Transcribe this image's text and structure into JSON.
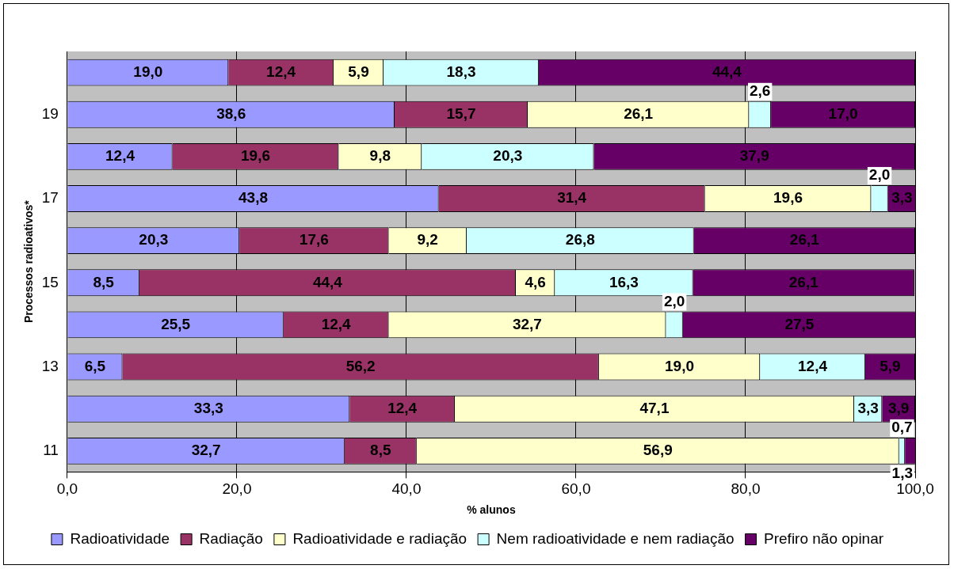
{
  "chart_data": {
    "type": "bar",
    "orientation": "horizontal",
    "stacked": true,
    "xlabel": "% alunos",
    "ylabel": "Processos radioativos*",
    "categories": [
      null,
      "19",
      null,
      "17",
      null,
      "15",
      null,
      "13",
      null,
      "11"
    ],
    "series": [
      {
        "name": "Radioatividade",
        "color": "#9999ff",
        "values": [
          19.0,
          38.6,
          12.4,
          43.8,
          20.3,
          8.5,
          25.5,
          6.5,
          33.3,
          32.7
        ],
        "value_labels": [
          "19,0",
          "38,6",
          "12,4",
          "43,8",
          "20,3",
          "8,5",
          "25,5",
          "6,5",
          "33,3",
          "32,7"
        ]
      },
      {
        "name": "Radiação",
        "color": "#993366",
        "values": [
          12.4,
          15.7,
          19.6,
          31.4,
          17.6,
          44.4,
          12.4,
          56.2,
          12.4,
          8.5
        ],
        "value_labels": [
          "12,4",
          "15,7",
          "19,6",
          "31,4",
          "17,6",
          "44,4",
          "12,4",
          "56,2",
          "12,4",
          "8,5"
        ]
      },
      {
        "name": "Radioatividade e radiação",
        "color": "#ffffcc",
        "values": [
          5.9,
          26.1,
          9.8,
          19.6,
          9.2,
          4.6,
          32.7,
          19.0,
          47.1,
          56.9
        ],
        "value_labels": [
          "5,9",
          "26,1",
          "9,8",
          "19,6",
          "9,2",
          "4,6",
          "32,7",
          "19,0",
          "47,1",
          "56,9"
        ]
      },
      {
        "name": "Nem radioatividade e nem radiação",
        "color": "#ccffff",
        "values": [
          18.3,
          2.6,
          20.3,
          2.0,
          26.8,
          16.3,
          2.0,
          12.4,
          3.3,
          0.7
        ],
        "value_labels": [
          "18,3",
          "2,6",
          "20,3",
          "2,0",
          "26,8",
          "16,3",
          "2,0",
          "12,4",
          "3,3",
          "0,7"
        ]
      },
      {
        "name": "Prefiro não opinar",
        "color": "#660066",
        "values": [
          44.4,
          17.0,
          37.9,
          3.3,
          26.1,
          26.1,
          27.5,
          5.9,
          3.9,
          1.3
        ],
        "value_labels": [
          "44,4",
          "17,0",
          "37,9",
          "3,3",
          "26,1",
          "26,1",
          "27,5",
          "5,9",
          "3,9",
          "1,3"
        ]
      }
    ],
    "xlim": [
      0,
      100
    ],
    "xticks": [
      {
        "value": 0,
        "label": "0,0"
      },
      {
        "value": 20,
        "label": "20,0"
      },
      {
        "value": 40,
        "label": "40,0"
      },
      {
        "value": 60,
        "label": "60,0"
      },
      {
        "value": 80,
        "label": "80,0"
      },
      {
        "value": 100,
        "label": "100,0"
      }
    ],
    "grid": "x",
    "legend": "bottom"
  }
}
